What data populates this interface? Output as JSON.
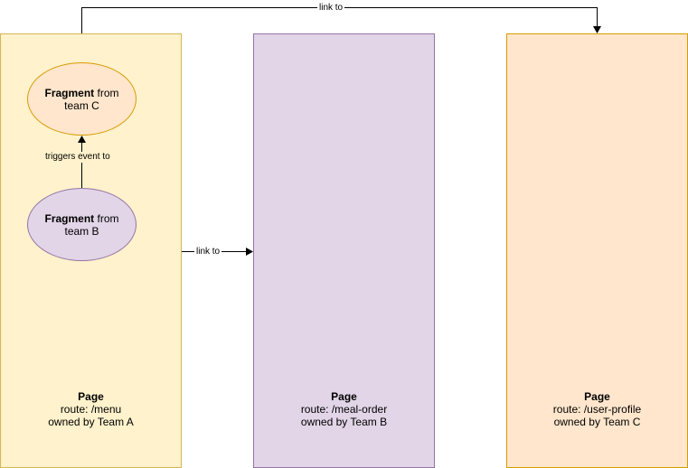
{
  "pages": [
    {
      "title": "Page",
      "route": "route: /menu",
      "owner": "owned by Team A",
      "fill": "#fff2cc",
      "stroke": "#d6b656"
    },
    {
      "title": "Page",
      "route": "route: /meal-order",
      "owner": "owned by Team B",
      "fill": "#e1d5e7",
      "stroke": "#9673a6"
    },
    {
      "title": "Page",
      "route": "route: /user-profile",
      "owner": "owned by Team C",
      "fill": "#ffe6cc",
      "stroke": "#d79b00"
    }
  ],
  "fragments": {
    "team_c": {
      "bold": "Fragment",
      "rest": " from team C",
      "fill": "#ffe6cc",
      "stroke": "#d79b00"
    },
    "team_b": {
      "bold": "Fragment",
      "rest": " from team B",
      "fill": "#e1d5e7",
      "stroke": "#9673a6"
    }
  },
  "edges": {
    "menu_to_user_profile": "link to",
    "menu_to_meal_order": "link to",
    "fragment_b_to_fragment_c": "triggers event to"
  }
}
